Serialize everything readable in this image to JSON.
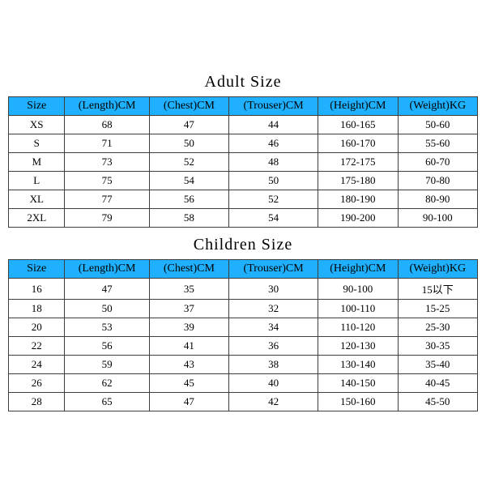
{
  "colors": {
    "header_bg": "#1fb1ff",
    "border": "#3e3e3e",
    "text": "#000000",
    "background": "#ffffff"
  },
  "typography": {
    "title_fontsize": 20,
    "header_fontsize": 14,
    "cell_fontsize": 13,
    "font_family": "Times New Roman"
  },
  "layout": {
    "column_widths_pct": [
      12,
      18,
      17,
      19,
      17,
      17
    ]
  },
  "adult": {
    "title": "Adult Size",
    "type": "table",
    "columns": [
      "Size",
      "(Length)CM",
      "(Chest)CM",
      "(Trouser)CM",
      "(Height)CM",
      "(Weight)KG"
    ],
    "rows": [
      [
        "XS",
        "68",
        "47",
        "44",
        "160-165",
        "50-60"
      ],
      [
        "S",
        "71",
        "50",
        "46",
        "160-170",
        "55-60"
      ],
      [
        "M",
        "73",
        "52",
        "48",
        "172-175",
        "60-70"
      ],
      [
        "L",
        "75",
        "54",
        "50",
        "175-180",
        "70-80"
      ],
      [
        "XL",
        "77",
        "56",
        "52",
        "180-190",
        "80-90"
      ],
      [
        "2XL",
        "79",
        "58",
        "54",
        "190-200",
        "90-100"
      ]
    ]
  },
  "children": {
    "title": "Children Size",
    "type": "table",
    "columns": [
      "Size",
      "(Length)CM",
      "(Chest)CM",
      "(Trouser)CM",
      "(Height)CM",
      "(Weight)KG"
    ],
    "rows": [
      [
        "16",
        "47",
        "35",
        "30",
        "90-100",
        "15以下"
      ],
      [
        "18",
        "50",
        "37",
        "32",
        "100-110",
        "15-25"
      ],
      [
        "20",
        "53",
        "39",
        "34",
        "110-120",
        "25-30"
      ],
      [
        "22",
        "56",
        "41",
        "36",
        "120-130",
        "30-35"
      ],
      [
        "24",
        "59",
        "43",
        "38",
        "130-140",
        "35-40"
      ],
      [
        "26",
        "62",
        "45",
        "40",
        "140-150",
        "40-45"
      ],
      [
        "28",
        "65",
        "47",
        "42",
        "150-160",
        "45-50"
      ]
    ]
  }
}
